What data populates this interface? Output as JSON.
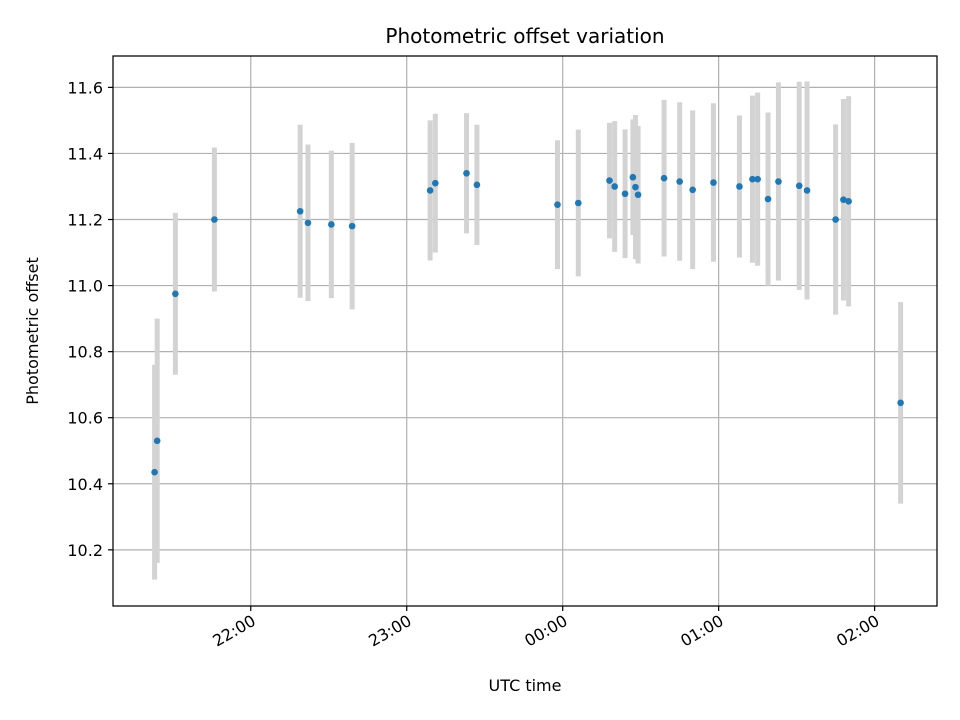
{
  "chart_data": {
    "type": "scatter",
    "title": "Photometric offset variation",
    "xlabel": "UTC time",
    "ylabel": "Photometric offset",
    "x_unit": "UTC time of night",
    "xlim": [
      "21:07",
      "02:24"
    ],
    "ylim": [
      10.03,
      11.695
    ],
    "x_ticks": [
      "22:00",
      "23:00",
      "00:00",
      "01:00",
      "02:00"
    ],
    "y_ticks": [
      "10.2",
      "10.4",
      "10.6",
      "10.8",
      "11.0",
      "11.2",
      "11.4",
      "11.6"
    ],
    "grid": true,
    "marker_color": "#1f77b4",
    "errorbar_color": "#d3d3d3",
    "points": [
      {
        "x": "21:23",
        "y": 10.435,
        "err": 0.325
      },
      {
        "x": "21:24",
        "y": 10.53,
        "err": 0.37
      },
      {
        "x": "21:31",
        "y": 10.975,
        "err": 0.245
      },
      {
        "x": "21:46",
        "y": 11.2,
        "err": 0.218
      },
      {
        "x": "22:19",
        "y": 11.225,
        "err": 0.262
      },
      {
        "x": "22:22",
        "y": 11.19,
        "err": 0.237
      },
      {
        "x": "22:31",
        "y": 11.185,
        "err": 0.223
      },
      {
        "x": "22:39",
        "y": 11.18,
        "err": 0.252
      },
      {
        "x": "23:09",
        "y": 11.288,
        "err": 0.212
      },
      {
        "x": "23:11",
        "y": 11.31,
        "err": 0.21
      },
      {
        "x": "23:23",
        "y": 11.34,
        "err": 0.182
      },
      {
        "x": "23:27",
        "y": 11.305,
        "err": 0.182
      },
      {
        "x": "23:58",
        "y": 11.245,
        "err": 0.195
      },
      {
        "x": "00:06",
        "y": 11.25,
        "err": 0.222
      },
      {
        "x": "00:18",
        "y": 11.318,
        "err": 0.175
      },
      {
        "x": "00:20",
        "y": 11.3,
        "err": 0.198
      },
      {
        "x": "00:24",
        "y": 11.278,
        "err": 0.195
      },
      {
        "x": "00:27",
        "y": 11.328,
        "err": 0.175
      },
      {
        "x": "00:28",
        "y": 11.298,
        "err": 0.218
      },
      {
        "x": "00:29",
        "y": 11.275,
        "err": 0.208
      },
      {
        "x": "00:39",
        "y": 11.325,
        "err": 0.237
      },
      {
        "x": "00:45",
        "y": 11.315,
        "err": 0.24
      },
      {
        "x": "00:50",
        "y": 11.29,
        "err": 0.24
      },
      {
        "x": "00:58",
        "y": 11.312,
        "err": 0.24
      },
      {
        "x": "01:08",
        "y": 11.3,
        "err": 0.215
      },
      {
        "x": "01:13",
        "y": 11.322,
        "err": 0.253
      },
      {
        "x": "01:15",
        "y": 11.322,
        "err": 0.262
      },
      {
        "x": "01:19",
        "y": 11.262,
        "err": 0.262
      },
      {
        "x": "01:23",
        "y": 11.315,
        "err": 0.3
      },
      {
        "x": "01:31",
        "y": 11.302,
        "err": 0.315
      },
      {
        "x": "01:34",
        "y": 11.288,
        "err": 0.33
      },
      {
        "x": "01:45",
        "y": 11.2,
        "err": 0.288
      },
      {
        "x": "01:48",
        "y": 11.26,
        "err": 0.305
      },
      {
        "x": "01:50",
        "y": 11.255,
        "err": 0.318
      },
      {
        "x": "02:10",
        "y": 10.645,
        "err": 0.305
      }
    ]
  }
}
